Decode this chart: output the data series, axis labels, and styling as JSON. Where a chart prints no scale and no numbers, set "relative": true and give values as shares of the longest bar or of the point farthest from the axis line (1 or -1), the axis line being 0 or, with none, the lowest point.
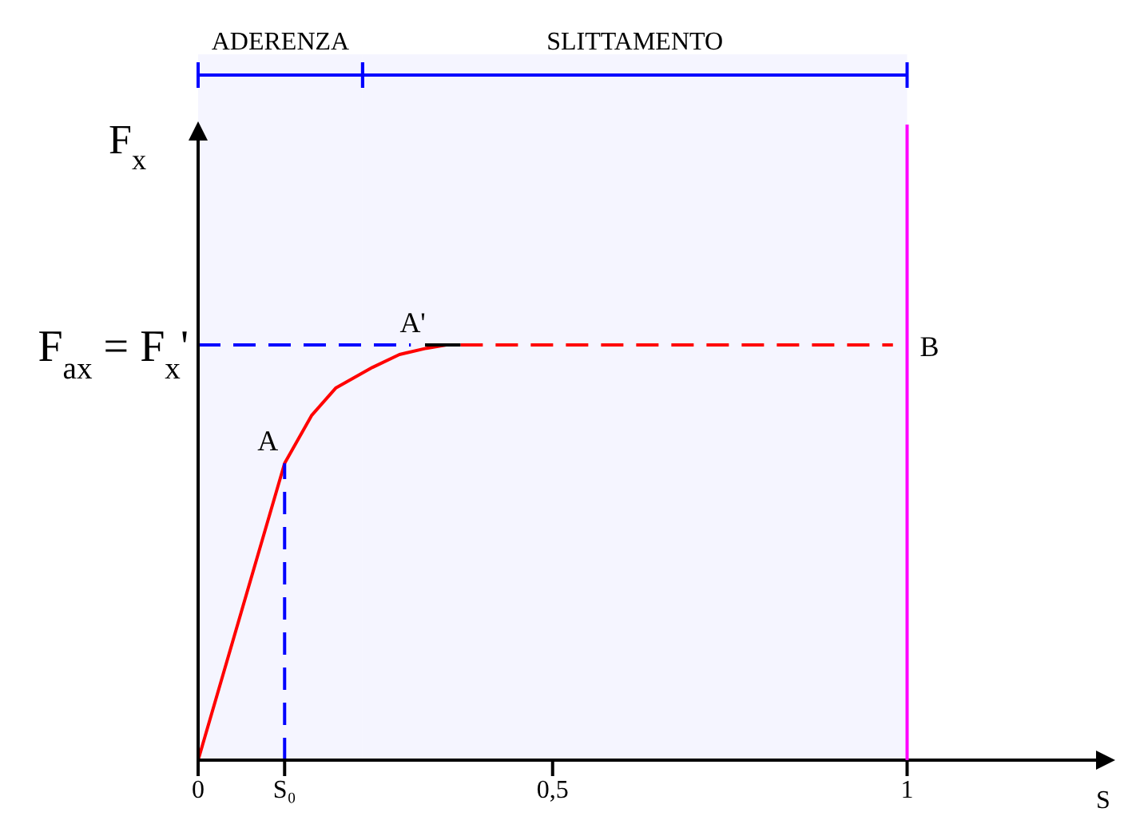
{
  "chart_data": {
    "type": "line",
    "relative": true,
    "xlabel": "S",
    "ylabel": "F$_{x}$",
    "xlim": [
      0,
      1.28
    ],
    "xticks": [
      0,
      {
        "value": 0.122,
        "label": "S₀"
      },
      {
        "value": 0.5,
        "label": "0,5"
      },
      1
    ],
    "series": [
      {
        "color": "#ff0000",
        "x": [
          0,
          0.122,
          0.16,
          0.194,
          0.246,
          0.284,
          0.322,
          0.35
        ],
        "values": [
          0,
          0.715,
          0.83,
          0.896,
          0.946,
          0.977,
          0.992,
          1
        ]
      },
      {
        "color": "#ff0000",
        "line_style": "dashed",
        "x": [
          0.37,
          0.98
        ],
        "values": [
          1,
          1
        ]
      },
      {
        "color": "#000000",
        "x": [
          0.32,
          0.37
        ],
        "values": [
          1,
          1
        ]
      },
      {
        "color": "#0000ff",
        "line_style": "dashed",
        "x": [
          0,
          0.3
        ],
        "values": [
          1,
          1
        ]
      },
      {
        "color": "#0000ff",
        "line_style": "dashed",
        "x": [
          0.122,
          0.122
        ],
        "values": [
          0,
          0.715
        ]
      }
    ],
    "ref_lines": [
      {
        "axis": "x",
        "value": 1,
        "label": "B",
        "color": "#ff00ff"
      }
    ],
    "bands": [
      {
        "axis": "x",
        "from": 0,
        "to": 0.232,
        "label": "ADERENZA",
        "color": "#0000ff"
      },
      {
        "axis": "x",
        "from": 0.232,
        "to": 1,
        "label": "SLITTAMENTO",
        "color": "#0000ff"
      }
    ],
    "annotations": [
      {
        "text": "A",
        "x": 0.122,
        "y": 0.715
      },
      {
        "text": "A'",
        "x": 0.33,
        "y": 1
      },
      {
        "text": "F$_{ax}$ = F$_{x}$'",
        "x": 0,
        "y": 1
      }
    ]
  }
}
